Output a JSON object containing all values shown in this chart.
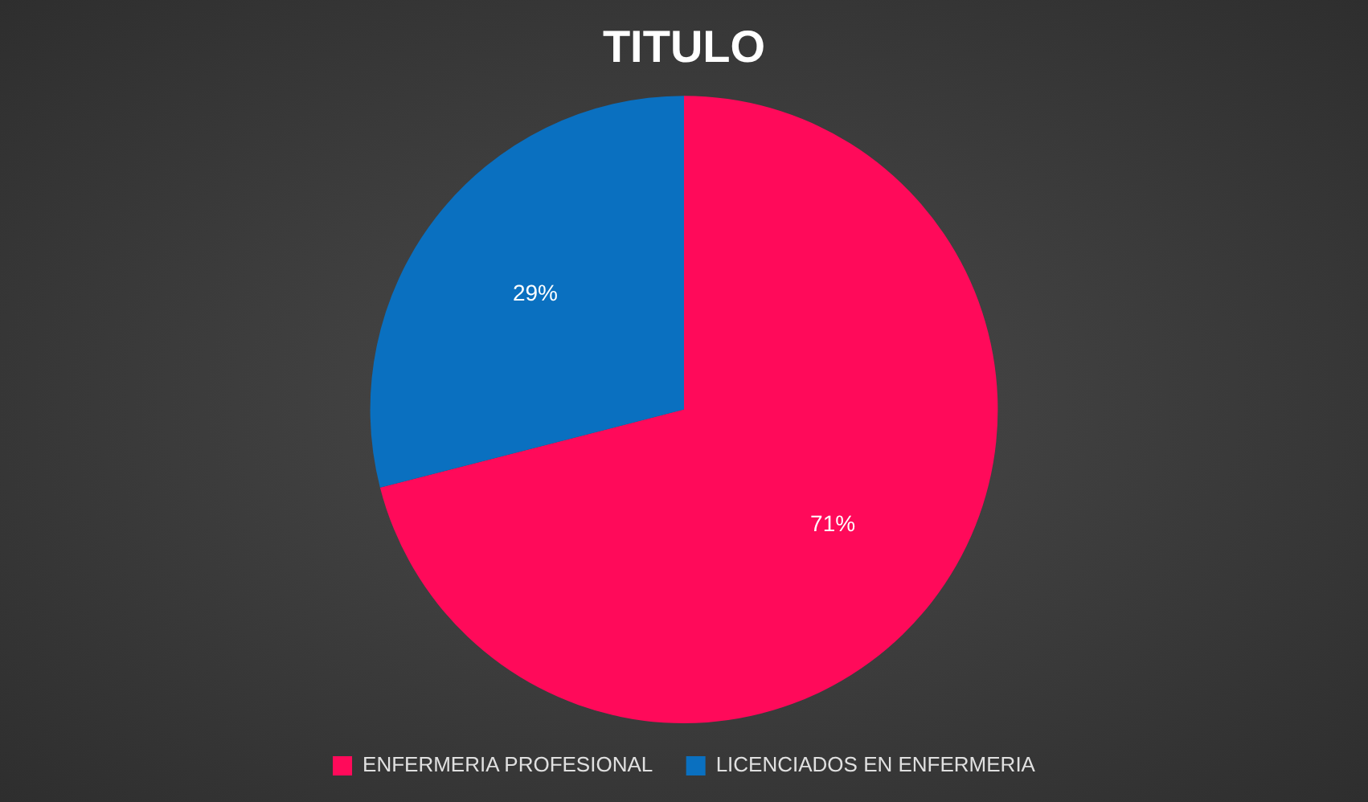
{
  "chart_data": {
    "type": "pie",
    "title": "TITULO",
    "categories": [
      "ENFERMERIA PROFESIONAL",
      "LICENCIADOS EN ENFERMERIA"
    ],
    "values": [
      71,
      29
    ],
    "colors": [
      "#ff0a5a",
      "#0a70c0"
    ],
    "value_labels": [
      "71%",
      "29%"
    ],
    "legend": "bottom"
  }
}
